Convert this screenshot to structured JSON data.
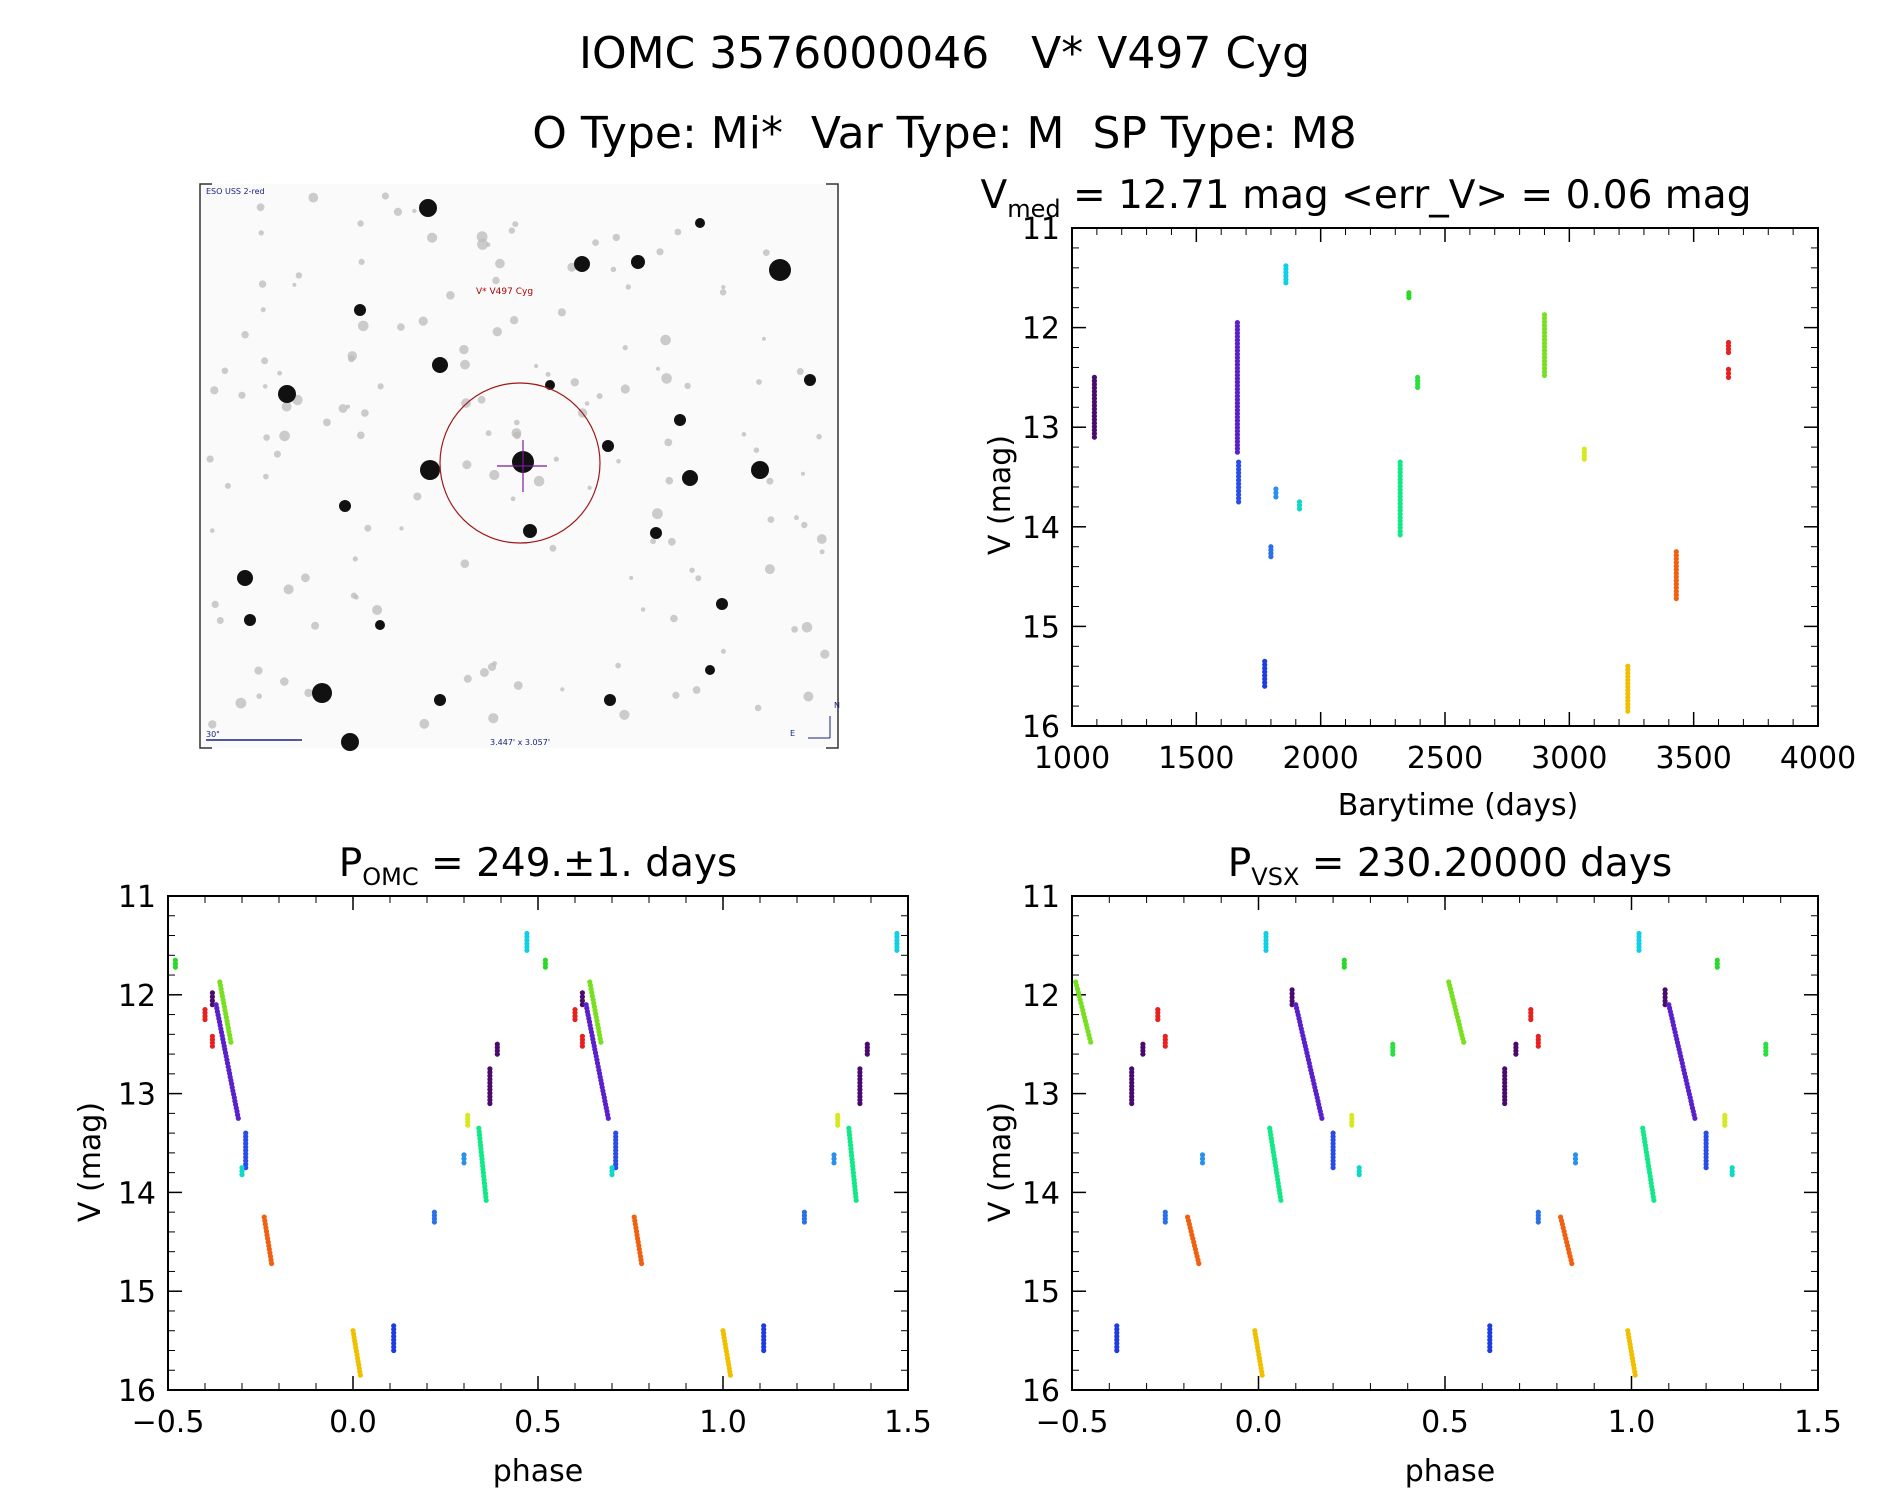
{
  "header": {
    "title_line1": "IOMC 3576000046   V* V497 Cyg",
    "title_line2": "O Type: Mi*  Var Type: M  SP Type: M8"
  },
  "finder": {
    "survey_label": "ESO USS 2-red",
    "target_label": "V* V497 Cyg",
    "scale_label": "30\"",
    "fov_label": "3.447' x 3.057'",
    "east_label": "E",
    "north_label": "N"
  },
  "chart_data": [
    {
      "type": "scatter",
      "id": "lightcurve",
      "title_main": "V",
      "title_sub": "med",
      "title_rest": " = 12.71 mag <err_V> = 0.06 mag",
      "xlabel": "Barytime (days)",
      "ylabel": "V (mag)",
      "xlim": [
        1000,
        4000
      ],
      "ylim": [
        16,
        11
      ],
      "y_reversed": true,
      "xticks": [
        1000,
        1500,
        2000,
        2500,
        3000,
        3500,
        4000
      ],
      "yticks": [
        11,
        12,
        13,
        14,
        15,
        16
      ],
      "groups": [
        {
          "x": 1090,
          "ymin": 12.5,
          "ymax": 13.1,
          "color": "#4a0a6e"
        },
        {
          "x": 1665,
          "ymin": 11.95,
          "ymax": 13.25,
          "color": "#5a20cc"
        },
        {
          "x": 1670,
          "ymin": 13.35,
          "ymax": 13.75,
          "color": "#2a4de8"
        },
        {
          "x": 1775,
          "ymin": 15.35,
          "ymax": 15.6,
          "color": "#1e3ce0"
        },
        {
          "x": 1800,
          "ymin": 14.2,
          "ymax": 14.3,
          "color": "#2a70e8"
        },
        {
          "x": 1820,
          "ymin": 13.62,
          "ymax": 13.7,
          "color": "#2a90ec"
        },
        {
          "x": 1860,
          "ymin": 11.38,
          "ymax": 11.55,
          "color": "#10d0e6"
        },
        {
          "x": 1915,
          "ymin": 13.75,
          "ymax": 13.82,
          "color": "#10d8c8"
        },
        {
          "x": 2320,
          "ymin": 13.35,
          "ymax": 14.08,
          "color": "#12e888"
        },
        {
          "x": 2355,
          "ymin": 11.65,
          "ymax": 11.7,
          "color": "#2ad82a"
        },
        {
          "x": 2390,
          "ymin": 12.5,
          "ymax": 12.6,
          "color": "#2ae040"
        },
        {
          "x": 2900,
          "ymin": 11.87,
          "ymax": 12.48,
          "color": "#78e020"
        },
        {
          "x": 3060,
          "ymin": 13.22,
          "ymax": 13.32,
          "color": "#d8e820"
        },
        {
          "x": 3235,
          "ymin": 15.4,
          "ymax": 15.85,
          "color": "#f0c000"
        },
        {
          "x": 3430,
          "ymin": 14.25,
          "ymax": 14.72,
          "color": "#f06010"
        },
        {
          "x": 3640,
          "ymin": 12.15,
          "ymax": 12.25,
          "color": "#e82020"
        },
        {
          "x": 3640,
          "ymin": 12.42,
          "ymax": 12.5,
          "color": "#e82020"
        }
      ]
    },
    {
      "type": "scatter",
      "id": "phase_omc",
      "title_main": "P",
      "title_sub": "OMC",
      "title_rest": " = 249.±1. days",
      "xlabel": "phase",
      "ylabel": "V (mag)",
      "xlim": [
        -0.5,
        1.5
      ],
      "ylim": [
        16,
        11
      ],
      "y_reversed": true,
      "xticks": [
        -0.5,
        0.0,
        0.5,
        1.0,
        1.5
      ],
      "xtick_labels": [
        "−0.5",
        "0.0",
        "0.5",
        "1.0",
        "1.5"
      ],
      "yticks": [
        11,
        12,
        13,
        14,
        15,
        16
      ],
      "groups": [
        {
          "x": -0.48,
          "ymin": 11.65,
          "ymax": 11.72,
          "color": "#2ad82a"
        },
        {
          "x": -0.4,
          "ymin": 12.15,
          "ymax": 12.25,
          "color": "#e82020"
        },
        {
          "x": -0.38,
          "ymin": 12.42,
          "ymax": 12.52,
          "color": "#e82020"
        },
        {
          "x": -0.38,
          "ymin": 11.98,
          "ymax": 12.1,
          "color": "#4a0a6e"
        },
        {
          "x": -0.36,
          "ymin": 11.87,
          "ymax": 12.48,
          "x2": -0.33,
          "color": "#78e020"
        },
        {
          "x": -0.37,
          "ymin": 12.1,
          "ymax": 13.25,
          "x2": -0.31,
          "color": "#5a20cc"
        },
        {
          "x": -0.29,
          "ymin": 13.4,
          "ymax": 13.75,
          "color": "#2a4de8"
        },
        {
          "x": -0.3,
          "ymin": 13.75,
          "ymax": 13.82,
          "color": "#10d8c8"
        },
        {
          "x": -0.24,
          "ymin": 14.25,
          "ymax": 14.72,
          "x2": -0.22,
          "color": "#f06010"
        },
        {
          "x": 0.0,
          "ymin": 15.4,
          "ymax": 15.85,
          "x2": 0.02,
          "color": "#f0c000"
        },
        {
          "x": 0.11,
          "ymin": 15.35,
          "ymax": 15.6,
          "color": "#1e3ce0"
        },
        {
          "x": 0.22,
          "ymin": 14.2,
          "ymax": 14.3,
          "color": "#2a70e8"
        },
        {
          "x": 0.3,
          "ymin": 13.62,
          "ymax": 13.7,
          "color": "#2a90ec"
        },
        {
          "x": 0.31,
          "ymin": 13.22,
          "ymax": 13.32,
          "color": "#d8e820"
        },
        {
          "x": 0.34,
          "ymin": 13.35,
          "ymax": 14.08,
          "x2": 0.36,
          "color": "#12e888"
        },
        {
          "x": 0.37,
          "ymin": 12.75,
          "ymax": 13.1,
          "color": "#4a0a6e"
        },
        {
          "x": 0.39,
          "ymin": 12.5,
          "ymax": 12.6,
          "color": "#4a0a6e"
        },
        {
          "x": 0.47,
          "ymin": 11.38,
          "ymax": 11.55,
          "color": "#10d0e6"
        },
        {
          "x": 0.52,
          "ymin": 11.65,
          "ymax": 11.72,
          "color": "#2ad82a"
        },
        {
          "x": 0.6,
          "ymin": 12.15,
          "ymax": 12.25,
          "color": "#e82020"
        },
        {
          "x": 0.62,
          "ymin": 12.42,
          "ymax": 12.52,
          "color": "#e82020"
        },
        {
          "x": 0.62,
          "ymin": 11.98,
          "ymax": 12.1,
          "color": "#4a0a6e"
        },
        {
          "x": 0.64,
          "ymin": 11.87,
          "ymax": 12.48,
          "x2": 0.67,
          "color": "#78e020"
        },
        {
          "x": 0.63,
          "ymin": 12.1,
          "ymax": 13.25,
          "x2": 0.69,
          "color": "#5a20cc"
        },
        {
          "x": 0.71,
          "ymin": 13.4,
          "ymax": 13.75,
          "color": "#2a4de8"
        },
        {
          "x": 0.7,
          "ymin": 13.75,
          "ymax": 13.82,
          "color": "#10d8c8"
        },
        {
          "x": 0.76,
          "ymin": 14.25,
          "ymax": 14.72,
          "x2": 0.78,
          "color": "#f06010"
        },
        {
          "x": 1.0,
          "ymin": 15.4,
          "ymax": 15.85,
          "x2": 1.02,
          "color": "#f0c000"
        },
        {
          "x": 1.11,
          "ymin": 15.35,
          "ymax": 15.6,
          "color": "#1e3ce0"
        },
        {
          "x": 1.22,
          "ymin": 14.2,
          "ymax": 14.3,
          "color": "#2a70e8"
        },
        {
          "x": 1.3,
          "ymin": 13.62,
          "ymax": 13.7,
          "color": "#2a90ec"
        },
        {
          "x": 1.31,
          "ymin": 13.22,
          "ymax": 13.32,
          "color": "#d8e820"
        },
        {
          "x": 1.34,
          "ymin": 13.35,
          "ymax": 14.08,
          "x2": 1.36,
          "color": "#12e888"
        },
        {
          "x": 1.37,
          "ymin": 12.75,
          "ymax": 13.1,
          "color": "#4a0a6e"
        },
        {
          "x": 1.39,
          "ymin": 12.5,
          "ymax": 12.6,
          "color": "#4a0a6e"
        },
        {
          "x": 1.47,
          "ymin": 11.38,
          "ymax": 11.55,
          "color": "#10d0e6"
        }
      ]
    },
    {
      "type": "scatter",
      "id": "phase_vsx",
      "title_main": "P",
      "title_sub": "VSX",
      "title_rest": " = 230.20000 days",
      "xlabel": "phase",
      "ylabel": "V (mag)",
      "xlim": [
        -0.5,
        1.5
      ],
      "ylim": [
        16,
        11
      ],
      "y_reversed": true,
      "xticks": [
        -0.5,
        0.0,
        0.5,
        1.0,
        1.5
      ],
      "xtick_labels": [
        "−0.5",
        "0.0",
        "0.5",
        "1.0",
        "1.5"
      ],
      "yticks": [
        11,
        12,
        13,
        14,
        15,
        16
      ],
      "groups": [
        {
          "x": -0.49,
          "ymin": 11.87,
          "ymax": 12.48,
          "x2": -0.45,
          "color": "#78e020"
        },
        {
          "x": -0.38,
          "ymin": 15.35,
          "ymax": 15.6,
          "color": "#1e3ce0"
        },
        {
          "x": -0.34,
          "ymin": 12.75,
          "ymax": 13.1,
          "color": "#4a0a6e"
        },
        {
          "x": -0.31,
          "ymin": 12.5,
          "ymax": 12.6,
          "color": "#4a0a6e"
        },
        {
          "x": -0.27,
          "ymin": 12.15,
          "ymax": 12.25,
          "color": "#e82020"
        },
        {
          "x": -0.25,
          "ymin": 12.42,
          "ymax": 12.52,
          "color": "#e82020"
        },
        {
          "x": -0.25,
          "ymin": 14.2,
          "ymax": 14.3,
          "color": "#2a70e8"
        },
        {
          "x": -0.19,
          "ymin": 14.25,
          "ymax": 14.72,
          "x2": -0.16,
          "color": "#f06010"
        },
        {
          "x": -0.15,
          "ymin": 13.62,
          "ymax": 13.7,
          "color": "#2a90ec"
        },
        {
          "x": -0.01,
          "ymin": 15.4,
          "ymax": 15.85,
          "x2": 0.01,
          "color": "#f0c000"
        },
        {
          "x": 0.02,
          "ymin": 11.38,
          "ymax": 11.55,
          "color": "#10d0e6"
        },
        {
          "x": 0.03,
          "ymin": 13.35,
          "ymax": 14.08,
          "x2": 0.06,
          "color": "#12e888"
        },
        {
          "x": 0.09,
          "ymin": 11.95,
          "ymax": 12.1,
          "color": "#4a0a6e"
        },
        {
          "x": 0.1,
          "ymin": 12.1,
          "ymax": 13.25,
          "x2": 0.17,
          "color": "#5a20cc"
        },
        {
          "x": 0.2,
          "ymin": 13.4,
          "ymax": 13.75,
          "color": "#2a4de8"
        },
        {
          "x": 0.23,
          "ymin": 11.65,
          "ymax": 11.72,
          "color": "#2ad82a"
        },
        {
          "x": 0.25,
          "ymin": 13.22,
          "ymax": 13.32,
          "color": "#d8e820"
        },
        {
          "x": 0.27,
          "ymin": 13.75,
          "ymax": 13.82,
          "color": "#10d8c8"
        },
        {
          "x": 0.36,
          "ymin": 12.5,
          "ymax": 12.6,
          "color": "#2ae040"
        },
        {
          "x": 0.51,
          "ymin": 11.87,
          "ymax": 12.48,
          "x2": 0.55,
          "color": "#78e020"
        },
        {
          "x": 0.62,
          "ymin": 15.35,
          "ymax": 15.6,
          "color": "#1e3ce0"
        },
        {
          "x": 0.66,
          "ymin": 12.75,
          "ymax": 13.1,
          "color": "#4a0a6e"
        },
        {
          "x": 0.69,
          "ymin": 12.5,
          "ymax": 12.6,
          "color": "#4a0a6e"
        },
        {
          "x": 0.73,
          "ymin": 12.15,
          "ymax": 12.25,
          "color": "#e82020"
        },
        {
          "x": 0.75,
          "ymin": 12.42,
          "ymax": 12.52,
          "color": "#e82020"
        },
        {
          "x": 0.75,
          "ymin": 14.2,
          "ymax": 14.3,
          "color": "#2a70e8"
        },
        {
          "x": 0.81,
          "ymin": 14.25,
          "ymax": 14.72,
          "x2": 0.84,
          "color": "#f06010"
        },
        {
          "x": 0.85,
          "ymin": 13.62,
          "ymax": 13.7,
          "color": "#2a90ec"
        },
        {
          "x": 0.99,
          "ymin": 15.4,
          "ymax": 15.85,
          "x2": 1.01,
          "color": "#f0c000"
        },
        {
          "x": 1.02,
          "ymin": 11.38,
          "ymax": 11.55,
          "color": "#10d0e6"
        },
        {
          "x": 1.03,
          "ymin": 13.35,
          "ymax": 14.08,
          "x2": 1.06,
          "color": "#12e888"
        },
        {
          "x": 1.09,
          "ymin": 11.95,
          "ymax": 12.1,
          "color": "#4a0a6e"
        },
        {
          "x": 1.1,
          "ymin": 12.1,
          "ymax": 13.25,
          "x2": 1.17,
          "color": "#5a20cc"
        },
        {
          "x": 1.2,
          "ymin": 13.4,
          "ymax": 13.75,
          "color": "#2a4de8"
        },
        {
          "x": 1.23,
          "ymin": 11.65,
          "ymax": 11.72,
          "color": "#2ad82a"
        },
        {
          "x": 1.25,
          "ymin": 13.22,
          "ymax": 13.32,
          "color": "#d8e820"
        },
        {
          "x": 1.27,
          "ymin": 13.75,
          "ymax": 13.82,
          "color": "#10d8c8"
        },
        {
          "x": 1.36,
          "ymin": 12.5,
          "ymax": 12.6,
          "color": "#2ae040"
        }
      ]
    }
  ]
}
